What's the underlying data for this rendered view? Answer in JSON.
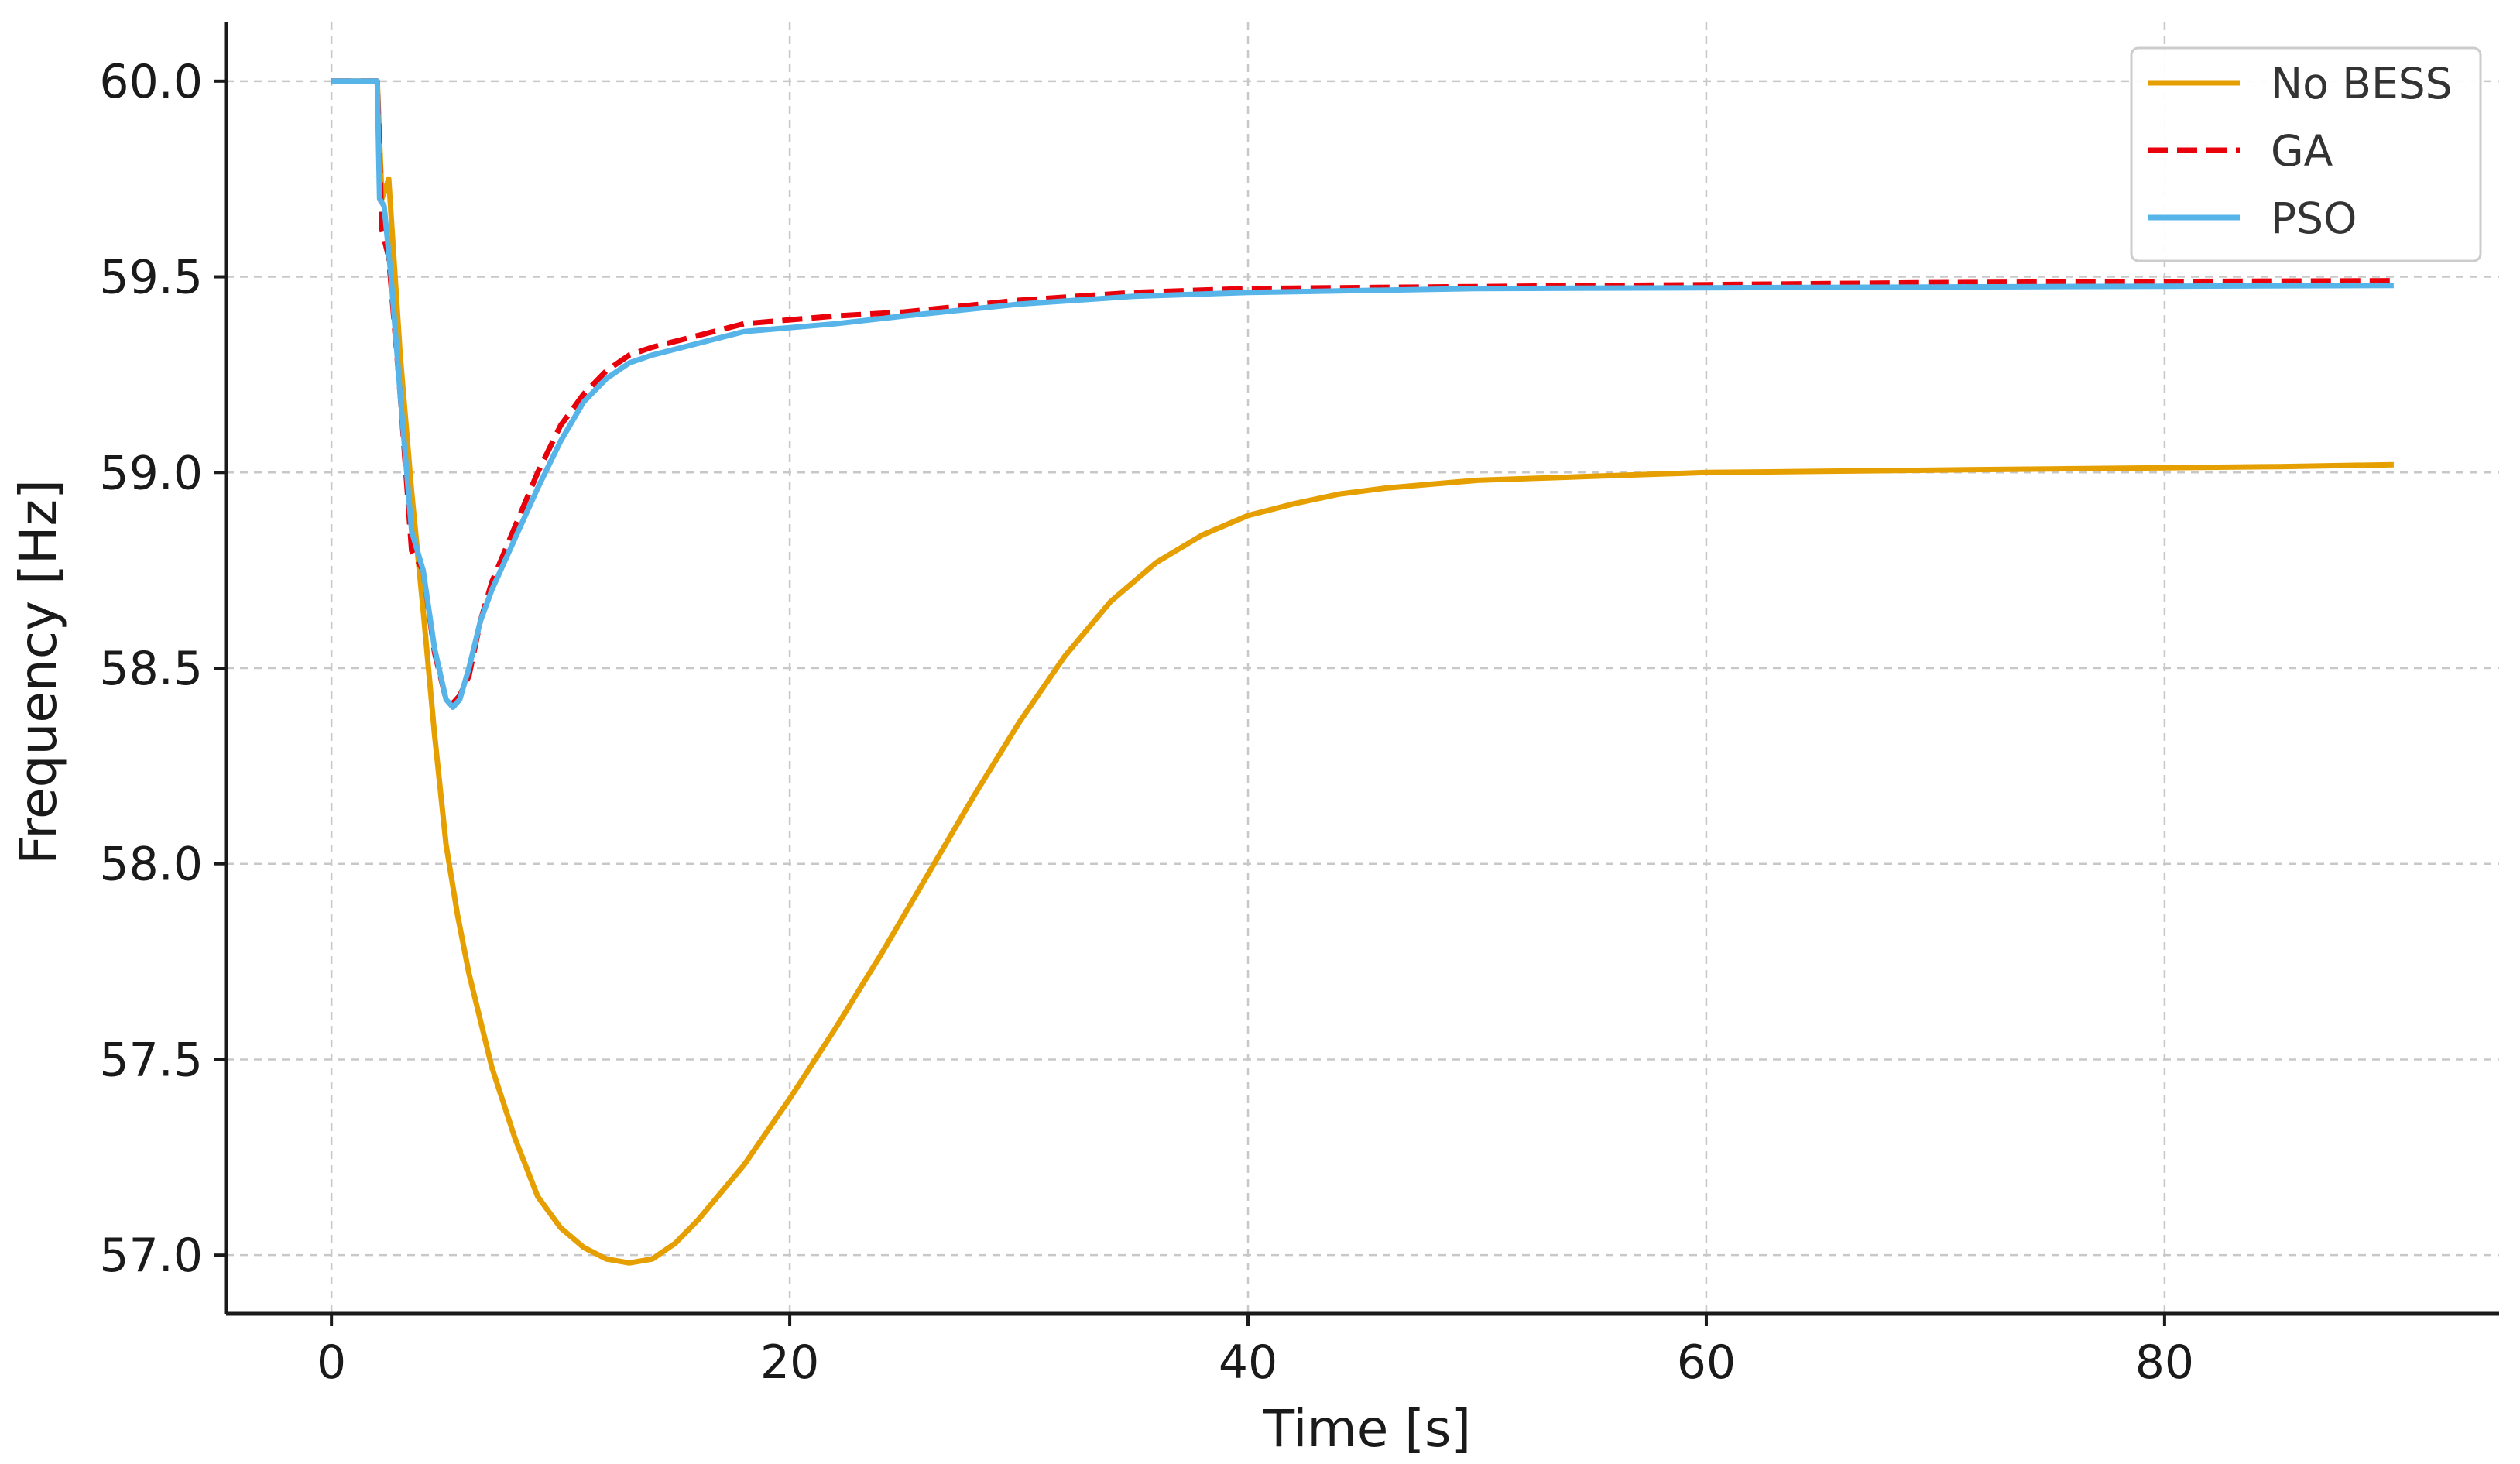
{
  "chart_data": {
    "type": "line",
    "title": "",
    "xlabel": "Time [s]",
    "ylabel": "Frequency [Hz]",
    "xlim": [
      -4.6,
      94.6
    ],
    "ylim": [
      56.85,
      60.15
    ],
    "xticks": [
      0,
      20,
      40,
      60,
      80
    ],
    "yticks": [
      57.0,
      57.5,
      58.0,
      58.5,
      59.0,
      59.5,
      60.0
    ],
    "ytick_labels": [
      "57.0",
      "57.5",
      "58.0",
      "58.5",
      "59.0",
      "59.5",
      "60.0"
    ],
    "xtick_labels": [
      "0",
      "20",
      "40",
      "60",
      "80"
    ],
    "grid": true,
    "legend_position": "top-right",
    "series": [
      {
        "name": "No BESS",
        "color": "#E69F00",
        "style": "solid",
        "x": [
          0,
          1,
          2,
          2.2,
          2.5,
          3,
          3.5,
          4,
          4.5,
          5,
          5.5,
          6,
          7,
          8,
          9,
          10,
          11,
          12,
          13,
          14,
          15,
          16,
          18,
          20,
          22,
          24,
          26,
          28,
          30,
          32,
          34,
          36,
          38,
          40,
          42,
          44,
          46,
          48,
          50,
          55,
          60,
          65,
          70,
          75,
          80,
          85,
          90
        ],
        "y": [
          60.0,
          60.0,
          60.0,
          59.7,
          59.75,
          59.3,
          58.95,
          58.65,
          58.33,
          58.05,
          57.87,
          57.72,
          57.48,
          57.3,
          57.15,
          57.07,
          57.02,
          56.99,
          56.98,
          56.99,
          57.03,
          57.09,
          57.23,
          57.4,
          57.58,
          57.77,
          57.97,
          58.17,
          58.36,
          58.53,
          58.67,
          58.77,
          58.84,
          58.89,
          58.92,
          58.945,
          58.96,
          58.97,
          58.98,
          58.99,
          59.0,
          59.003,
          59.006,
          59.009,
          59.012,
          59.015,
          59.02
        ]
      },
      {
        "name": "GA",
        "color": "#E8000B",
        "style": "dashed",
        "x": [
          0,
          1,
          2,
          2.2,
          2.5,
          3,
          3.5,
          4,
          4.5,
          5,
          5.3,
          5.6,
          6,
          6.5,
          7,
          8,
          9,
          10,
          11,
          12,
          13,
          14,
          16,
          18,
          20,
          22,
          25,
          30,
          35,
          40,
          50,
          60,
          70,
          80,
          90
        ],
        "y": [
          60.0,
          60.0,
          60.0,
          59.62,
          59.55,
          59.2,
          58.8,
          58.75,
          58.54,
          58.42,
          58.41,
          58.43,
          58.48,
          58.62,
          58.72,
          58.86,
          59.0,
          59.12,
          59.2,
          59.26,
          59.3,
          59.32,
          59.35,
          59.38,
          59.39,
          59.4,
          59.41,
          59.44,
          59.46,
          59.47,
          59.475,
          59.48,
          59.485,
          59.488,
          59.49
        ]
      },
      {
        "name": "PSO",
        "color": "#56B4E9",
        "style": "solid",
        "x": [
          0,
          1,
          2,
          2.1,
          2.3,
          2.6,
          3,
          3.5,
          4,
          4.5,
          5,
          5.3,
          5.6,
          6,
          6.5,
          7,
          8,
          9,
          10,
          11,
          12,
          13,
          14,
          16,
          18,
          20,
          22,
          25,
          30,
          35,
          40,
          50,
          60,
          70,
          80,
          90
        ],
        "y": [
          60.0,
          60.0,
          60.0,
          59.7,
          59.68,
          59.5,
          59.2,
          58.85,
          58.75,
          58.55,
          58.42,
          58.4,
          58.42,
          58.5,
          58.62,
          58.7,
          58.83,
          58.96,
          59.08,
          59.18,
          59.24,
          59.28,
          59.3,
          59.33,
          59.36,
          59.37,
          59.38,
          59.4,
          59.43,
          59.45,
          59.46,
          59.47,
          59.472,
          59.474,
          59.476,
          59.478
        ]
      }
    ]
  }
}
